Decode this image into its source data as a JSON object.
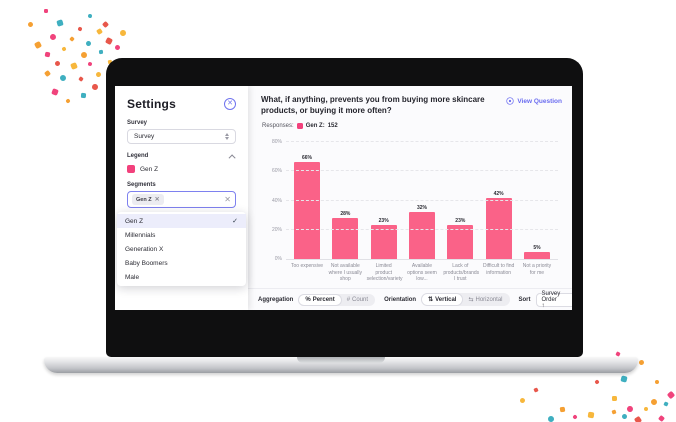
{
  "app": {
    "sidebar": {
      "title": "Settings",
      "survey_label": "Survey",
      "survey_value": "Survey",
      "legend_label": "Legend",
      "legend_items": [
        {
          "label": "Gen Z",
          "color": "#F2417C"
        }
      ],
      "segments_label": "Segments",
      "segments_chip": "Gen Z",
      "dropdown": {
        "items": [
          {
            "label": "Gen Z",
            "selected": true
          },
          {
            "label": "Millennials",
            "selected": false
          },
          {
            "label": "Generation X",
            "selected": false
          },
          {
            "label": "Baby Boomers",
            "selected": false
          },
          {
            "label": "Male",
            "selected": false
          }
        ]
      }
    },
    "header": {
      "question": "What, if anything, prevents you from buying more skincare products, or buying it more often?",
      "view_question": "View Question"
    },
    "responses": {
      "label": "Responses:",
      "series": "Gen Z:",
      "count": "152",
      "swatch_color": "#F2417C"
    },
    "controls": {
      "aggregation_label": "Aggregation",
      "aggregation_options": [
        {
          "icon": "%",
          "label": "Percent",
          "selected": true
        },
        {
          "icon": "#",
          "label": "Count",
          "selected": false
        }
      ],
      "orientation_label": "Orientation",
      "orientation_options": [
        {
          "icon": "⇅",
          "label": "Vertical",
          "selected": true
        },
        {
          "icon": "⇆",
          "label": "Horizontal",
          "selected": false
        }
      ],
      "sort_label": "Sort",
      "sort_value": "Survey Order ↑"
    }
  },
  "chart_data": {
    "type": "bar",
    "title": "What, if anything, prevents you from buying more skincare products, or buying it more often?",
    "series_name": "Gen Z",
    "categories": [
      "Too expensive",
      "Not available where I usually shop",
      "Limited product selection/variety",
      "Available options seem low...",
      "Lack of products/brands I trust",
      "Difficult to find information",
      "Not a priority for me"
    ],
    "values": [
      66,
      28,
      23,
      32,
      23,
      42,
      5
    ],
    "value_labels": [
      "66%",
      "28%",
      "23%",
      "32%",
      "23%",
      "42%",
      "5%"
    ],
    "bar_color": "#FA6288",
    "ylim": [
      0,
      80
    ],
    "yticks": [
      0,
      20,
      40,
      60,
      80
    ],
    "ytick_labels": [
      "0%",
      "20%",
      "40%",
      "60%",
      "80%"
    ],
    "grid": "dashed-horizontal",
    "legend_position": "none"
  },
  "decor": {
    "confetti_colors": [
      "#F0437C",
      "#F5A033",
      "#3FAFC0",
      "#E8574B",
      "#F7B73C"
    ]
  }
}
